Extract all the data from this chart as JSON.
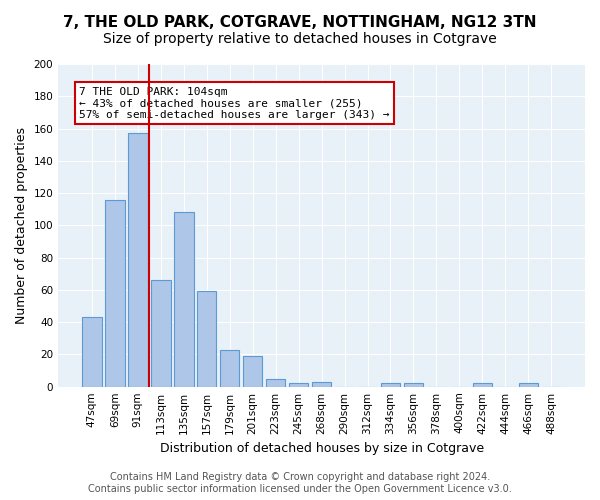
{
  "title": "7, THE OLD PARK, COTGRAVE, NOTTINGHAM, NG12 3TN",
  "subtitle": "Size of property relative to detached houses in Cotgrave",
  "xlabel": "Distribution of detached houses by size in Cotgrave",
  "ylabel": "Number of detached properties",
  "categories": [
    "47sqm",
    "69sqm",
    "91sqm",
    "113sqm",
    "135sqm",
    "157sqm",
    "179sqm",
    "201sqm",
    "223sqm",
    "245sqm",
    "268sqm",
    "290sqm",
    "312sqm",
    "334sqm",
    "356sqm",
    "378sqm",
    "400sqm",
    "422sqm",
    "444sqm",
    "466sqm",
    "488sqm"
  ],
  "values": [
    43,
    116,
    157,
    66,
    108,
    59,
    23,
    19,
    5,
    2,
    3,
    0,
    0,
    2,
    2,
    0,
    0,
    2,
    0,
    2,
    0
  ],
  "bar_color": "#aec6e8",
  "bar_edge_color": "#5b9bd5",
  "vline_x": 3,
  "vline_color": "#cc0000",
  "annotation_lines": [
    "7 THE OLD PARK: 104sqm",
    "← 43% of detached houses are smaller (255)",
    "57% of semi-detached houses are larger (343) →"
  ],
  "annotation_box_color": "#cc0000",
  "ylim": [
    0,
    200
  ],
  "yticks": [
    0,
    20,
    40,
    60,
    80,
    100,
    120,
    140,
    160,
    180,
    200
  ],
  "background_color": "#e8f0f8",
  "footer_line1": "Contains HM Land Registry data © Crown copyright and database right 2024.",
  "footer_line2": "Contains public sector information licensed under the Open Government Licence v3.0.",
  "title_fontsize": 11,
  "subtitle_fontsize": 10,
  "xlabel_fontsize": 9,
  "ylabel_fontsize": 9,
  "tick_fontsize": 7.5,
  "annotation_fontsize": 8,
  "footer_fontsize": 7
}
